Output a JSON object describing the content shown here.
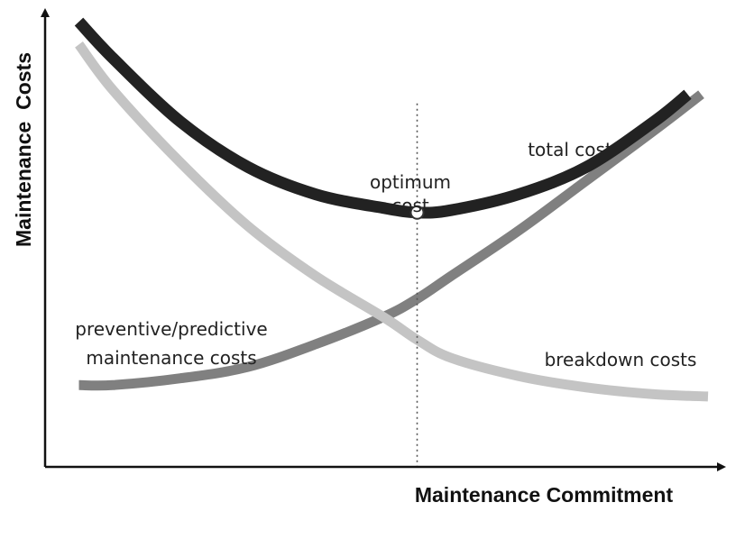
{
  "chart_data": {
    "type": "line",
    "title": "",
    "xlabel": "Maintenance Commitment",
    "ylabel": "Maintenance  Costs",
    "xlim": [
      0,
      100
    ],
    "ylim": [
      0,
      100
    ],
    "grid": false,
    "legend": "none",
    "x": [
      5,
      10,
      20,
      30,
      40,
      50,
      55,
      60,
      70,
      80,
      90,
      95
    ],
    "series": [
      {
        "name": "total cost",
        "color": "#222222",
        "values": [
          98,
          90,
          76,
          66,
          60,
          57,
          56,
          56.5,
          60,
          66,
          76,
          82
        ]
      },
      {
        "name": "preventive/predictive maintenance costs",
        "color": "#808080",
        "x": [
          5,
          10,
          20,
          30,
          40,
          50,
          55,
          60,
          70,
          80,
          90,
          97
        ],
        "values": [
          18,
          18,
          19.5,
          22,
          27,
          33,
          37,
          42,
          52,
          63,
          74,
          82
        ]
      },
      {
        "name": "breakdown costs",
        "color": "#c4c4c4",
        "x": [
          5,
          10,
          20,
          30,
          40,
          50,
          55,
          60,
          70,
          80,
          90,
          98
        ],
        "values": [
          93,
          83,
          67,
          53,
          42,
          33,
          28,
          24,
          20,
          17.5,
          16,
          15.5
        ]
      }
    ],
    "annotations": {
      "total": "total cost",
      "optimum_line1": "optimum",
      "optimum_line2": "cost",
      "preventive_line1": "preventive/predictive",
      "preventive_line2": "maintenance costs",
      "breakdown": "breakdown costs"
    },
    "optimum_x": 55,
    "optimum_y": 56
  }
}
